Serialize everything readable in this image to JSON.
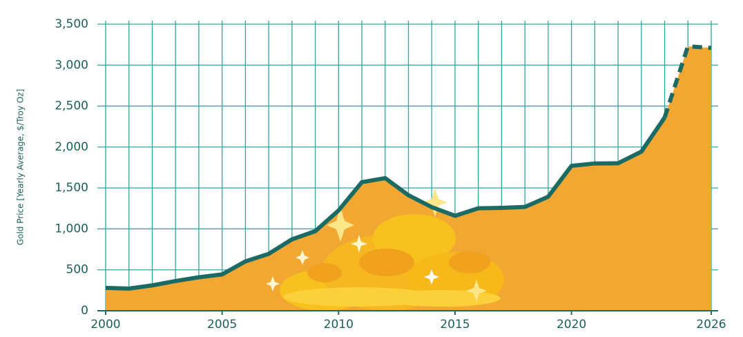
{
  "chart_data": {
    "type": "area",
    "y_label": "Gold Price [Yearly  Average, $/Troy Oz]",
    "x": [
      2000,
      2001,
      2002,
      2003,
      2004,
      2005,
      2006,
      2007,
      2008,
      2009,
      2010,
      2011,
      2012,
      2013,
      2014,
      2015,
      2016,
      2017,
      2018,
      2019,
      2020,
      2021,
      2022,
      2023,
      2024,
      2025,
      2026
    ],
    "values": [
      279,
      271,
      310,
      363,
      409,
      444,
      603,
      695,
      872,
      972,
      1225,
      1570,
      1620,
      1411,
      1266,
      1160,
      1251,
      1257,
      1268,
      1393,
      1770,
      1799,
      1801,
      1943,
      2360,
      3230,
      3210
    ],
    "projected_from_index": 24,
    "color": "#f2a732",
    "line_color": "#1c6a64",
    "grid_color": "#2fa69c",
    "xlim": [
      2000,
      2026
    ],
    "xticks": [
      2000,
      2005,
      2010,
      2015,
      2020,
      2026
    ],
    "ylim": [
      0,
      3500
    ],
    "yticks": [
      0,
      500,
      {
        "value": 1000,
        "label": "1,000"
      },
      {
        "value": 1500,
        "label": "1,500"
      },
      {
        "value": 2000,
        "label": "2,000"
      },
      {
        "value": 2500,
        "label": "2,500"
      },
      {
        "value": 3000,
        "label": "3,000"
      },
      {
        "value": 3500,
        "label": "3,500"
      }
    ],
    "grid": true
  }
}
